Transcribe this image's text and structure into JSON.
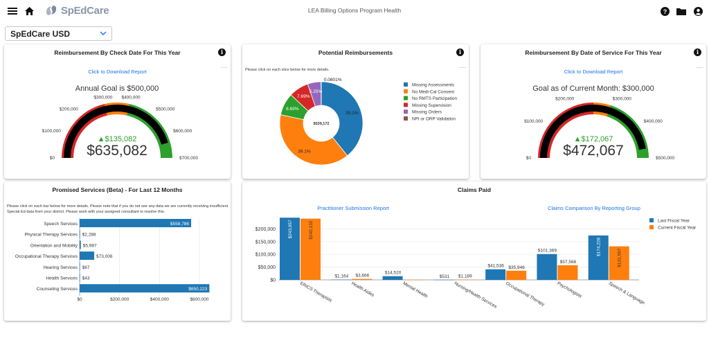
{
  "header": {
    "app_title": "LEA Billing Options Program Health",
    "logo_text": "SpEdCare",
    "icons": [
      "menu-icon",
      "home-icon",
      "help-icon",
      "folder-icon",
      "account-icon"
    ]
  },
  "district_select": {
    "value": "SpEdCare USD"
  },
  "colors": {
    "red": "#d62728",
    "orange": "#ff7f0e",
    "green": "#2ca02c",
    "blue": "#1f77b4",
    "purple": "#9467bd",
    "brown": "#8c564b",
    "link": "#1a73e8",
    "gain": "#2ca02c"
  },
  "gauge_check_date": {
    "title": "Reimbursement By Check Date For This Year",
    "download_label": "Click to Download Report",
    "goal_label": "Annual Goal is $500,000",
    "delta": "▲$135,082",
    "value_label": "$635,082",
    "value": 635082,
    "ticks": [
      "$0",
      "$100,000",
      "$200,000",
      "$300,000",
      "$400,000",
      "$500,000",
      "$600,000",
      "$700,000"
    ],
    "range": [
      0,
      700000
    ],
    "bands": [
      {
        "from": 0,
        "to": 300000,
        "color": "red"
      },
      {
        "from": 300000,
        "to": 400000,
        "color": "orange"
      },
      {
        "from": 400000,
        "to": 700000,
        "color": "green"
      }
    ]
  },
  "potential_reimbursements": {
    "title": "Potential Reimbursements",
    "instruction": "Please click on each slice below for more details.",
    "center_label": "$539,172",
    "chart_data": {
      "type": "pie",
      "categories": [
        "Missing Assessments",
        "No Medi-Cal Consent",
        "No RMTS Participation",
        "Missing Supervision",
        "Missing Orders",
        "NPI or ORP Validation"
      ],
      "values": [
        39.2,
        39.1,
        8.69,
        7.69,
        5.25,
        0.0801
      ],
      "labels": [
        "39.2%",
        "39.1%",
        "8.69%",
        "7.69%",
        "5.25%",
        "0.0801%"
      ],
      "colors": [
        "#1f77b4",
        "#ff7f0e",
        "#2ca02c",
        "#d62728",
        "#9467bd",
        "#8c564b"
      ]
    }
  },
  "gauge_service_date": {
    "title": "Reimbursement By Date of Service For This Year",
    "download_label": "Click to Download Report",
    "goal_label": "Goal as of Current Month: $300,000",
    "delta": "▲$172,067",
    "value_label": "$472,067",
    "value": 472067,
    "ticks": [
      "$0",
      "$100,000",
      "$200,000",
      "$300,000",
      "$400,000",
      "$500,000"
    ],
    "range": [
      0,
      500000
    ],
    "bands": [
      {
        "from": 0,
        "to": 250000,
        "color": "red"
      },
      {
        "from": 250000,
        "to": 300000,
        "color": "orange"
      },
      {
        "from": 300000,
        "to": 500000,
        "color": "green"
      }
    ]
  },
  "promised_services": {
    "title": "Promised Services (Beta) - For Last 12 Months",
    "note_line1": "Please click on each bar below for more details. Please note that if you do not see any data we are currently receiving insufficient",
    "note_line2": "Special Ed data from your district. Please work with your assigned consultant to resolve this.",
    "chart_data": {
      "type": "bar",
      "orientation": "horizontal",
      "categories": [
        "Speech Services",
        "Physical Therapy Services",
        "Orientation and Mobility",
        "Occupational Therapy Services",
        "Hearing Services",
        "Health Services",
        "Counseling Services"
      ],
      "values": [
        558786,
        2288,
        5987,
        73006,
        67,
        43,
        650223
      ],
      "value_labels": [
        "$558,786",
        "$2,288",
        "$5,987",
        "$73,006",
        "$67",
        "$43",
        "$650,223"
      ],
      "x_ticks": [
        "$0",
        "$200,000",
        "$400,000",
        "$600,000"
      ],
      "xlim": [
        0,
        680000
      ]
    }
  },
  "claims_paid": {
    "title": "Claims Paid",
    "link_practitioner": "Practitioner Submission Report",
    "link_claims": "Claims Comparison By Reporting Group",
    "chart_data": {
      "type": "bar",
      "categories": [
        "ERICS Therapists",
        "Health Aides",
        "Mental Health",
        "Nursing/Health Services",
        "Occupational Therapy",
        "Psychologists",
        "Speech & Language"
      ],
      "series": [
        {
          "name": "Last Fiscal Year",
          "values": [
            243957,
            1164,
            14520,
            531,
            41536,
            101369,
            174228
          ],
          "labels": [
            "$243,957",
            "$1,164",
            "$14,520",
            "$531",
            "$41,536",
            "$101,369",
            "$174,228"
          ]
        },
        {
          "name": "Current Fiscal Year",
          "values": [
            240132,
            3666,
            0,
            1189,
            35946,
            57568,
            131567
          ],
          "labels": [
            "$240,132",
            "$3,666",
            "",
            "$1,189",
            "$35,946",
            "$57,568",
            "$131,567"
          ]
        }
      ],
      "y_ticks": [
        "$0",
        "$50,000",
        "$100,000",
        "$150,000",
        "$200,000"
      ],
      "ylim": [
        0,
        250000
      ]
    }
  }
}
